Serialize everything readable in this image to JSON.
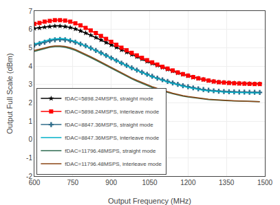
{
  "chart_data": {
    "type": "line",
    "xlabel": "Output Frequency (MHz)",
    "ylabel": "Output Full Scale (dBm)",
    "xlim": [
      600,
      1500
    ],
    "ylim": [
      -2,
      7
    ],
    "xticks": [
      600,
      750,
      900,
      1050,
      1200,
      1350,
      1500
    ],
    "yticks": [
      -2,
      -1,
      0,
      1,
      2,
      3,
      4,
      5,
      6,
      7
    ],
    "grid": true,
    "legend": "lower left",
    "x": [
      600,
      620,
      640,
      660,
      680,
      700,
      720,
      740,
      760,
      780,
      800,
      820,
      840,
      860,
      880,
      900,
      920,
      940,
      960,
      980,
      1000,
      1020,
      1040,
      1060,
      1080,
      1100,
      1120,
      1140,
      1160,
      1180,
      1200,
      1220,
      1240,
      1260,
      1280,
      1300,
      1320,
      1340,
      1360,
      1380,
      1400,
      1420,
      1440,
      1460,
      1480
    ],
    "series": [
      {
        "name": "fDAC=5898.24MSPS, straight mode",
        "color": "#000000",
        "marker": "star",
        "line_style": "solid",
        "values": [
          6.05,
          6.08,
          6.12,
          6.15,
          6.18,
          6.18,
          6.15,
          6.1,
          6.02,
          5.92,
          5.8,
          5.68,
          5.55,
          5.42,
          5.28,
          5.15,
          5.02,
          4.88,
          4.75,
          4.62,
          4.5,
          4.38,
          4.25,
          4.14,
          4.03,
          3.92,
          3.82,
          3.72,
          3.62,
          3.54,
          3.46,
          3.38,
          3.32,
          3.26,
          3.2,
          3.15,
          3.12,
          3.1,
          3.08,
          3.06,
          3.05,
          3.04,
          3.03,
          3.02,
          3.02
        ]
      },
      {
        "name": "fDAC=5898.24MSPS, interleave mode",
        "color": "#ff0000",
        "marker": "square",
        "line_style": "solid",
        "values": [
          6.3,
          6.35,
          6.42,
          6.46,
          6.5,
          6.5,
          6.48,
          6.42,
          6.33,
          6.22,
          6.08,
          5.94,
          5.8,
          5.64,
          5.48,
          5.32,
          5.16,
          5.0,
          4.86,
          4.72,
          4.58,
          4.45,
          4.32,
          4.2,
          4.08,
          3.96,
          3.86,
          3.76,
          3.65,
          3.56,
          3.48,
          3.4,
          3.33,
          3.27,
          3.21,
          3.16,
          3.12,
          3.1,
          3.08,
          3.06,
          3.05,
          3.04,
          3.03,
          3.02,
          3.02
        ]
      },
      {
        "name": "fDAC=8847.36MSPS, straight mode",
        "color": "#2f6d8a",
        "marker": "cross",
        "line_style": "solid",
        "values": [
          5.15,
          5.22,
          5.3,
          5.38,
          5.43,
          5.45,
          5.43,
          5.38,
          5.3,
          5.2,
          5.1,
          4.98,
          4.85,
          4.72,
          4.58,
          4.44,
          4.3,
          4.16,
          4.03,
          3.9,
          3.78,
          3.66,
          3.55,
          3.44,
          3.34,
          3.25,
          3.16,
          3.08,
          3.0,
          2.93,
          2.87,
          2.81,
          2.76,
          2.72,
          2.68,
          2.65,
          2.63,
          2.61,
          2.6,
          2.59,
          2.58,
          2.58,
          2.57,
          2.57,
          2.56
        ]
      },
      {
        "name": "fDAC=8847.36MSPS, interleave mode",
        "color": "#00b0c8",
        "line_style": "solid",
        "values": [
          5.2,
          5.28,
          5.36,
          5.44,
          5.48,
          5.5,
          5.48,
          5.42,
          5.33,
          5.22,
          5.1,
          4.97,
          4.84,
          4.7,
          4.56,
          4.42,
          4.28,
          4.14,
          4.01,
          3.88,
          3.76,
          3.64,
          3.52,
          3.42,
          3.32,
          3.22,
          3.13,
          3.05,
          2.97,
          2.9,
          2.84,
          2.78,
          2.73,
          2.68,
          2.65,
          2.62,
          2.6,
          2.58,
          2.57,
          2.56,
          2.55,
          2.55,
          2.54,
          2.54,
          2.53
        ]
      },
      {
        "name": "fDAC=11796.48MSPS, straight mode",
        "color": "#2d6a4f",
        "line_style": "solid",
        "values": [
          4.8,
          4.88,
          4.96,
          5.02,
          5.06,
          5.06,
          5.02,
          4.95,
          4.85,
          4.73,
          4.6,
          4.46,
          4.32,
          4.17,
          4.02,
          3.87,
          3.72,
          3.57,
          3.43,
          3.3,
          3.17,
          3.05,
          2.94,
          2.83,
          2.73,
          2.64,
          2.56,
          2.49,
          2.42,
          2.36,
          2.31,
          2.27,
          2.23,
          2.2,
          2.17,
          2.15,
          2.13,
          2.12,
          2.11,
          2.1,
          2.09,
          2.08,
          2.07,
          2.06,
          2.06
        ]
      },
      {
        "name": "fDAC=11796.48MSPS, interleave mode",
        "color": "#8b4513",
        "line_style": "solid",
        "values": [
          4.85,
          4.92,
          5.0,
          5.06,
          5.1,
          5.1,
          5.07,
          5.0,
          4.9,
          4.78,
          4.65,
          4.51,
          4.37,
          4.22,
          4.07,
          3.92,
          3.77,
          3.62,
          3.48,
          3.35,
          3.22,
          3.1,
          2.98,
          2.88,
          2.78,
          2.68,
          2.6,
          2.52,
          2.45,
          2.39,
          2.34,
          2.3,
          2.26,
          2.22,
          2.19,
          2.17,
          2.15,
          2.13,
          2.12,
          2.11,
          2.1,
          2.09,
          2.08,
          2.07,
          2.06
        ]
      }
    ]
  }
}
